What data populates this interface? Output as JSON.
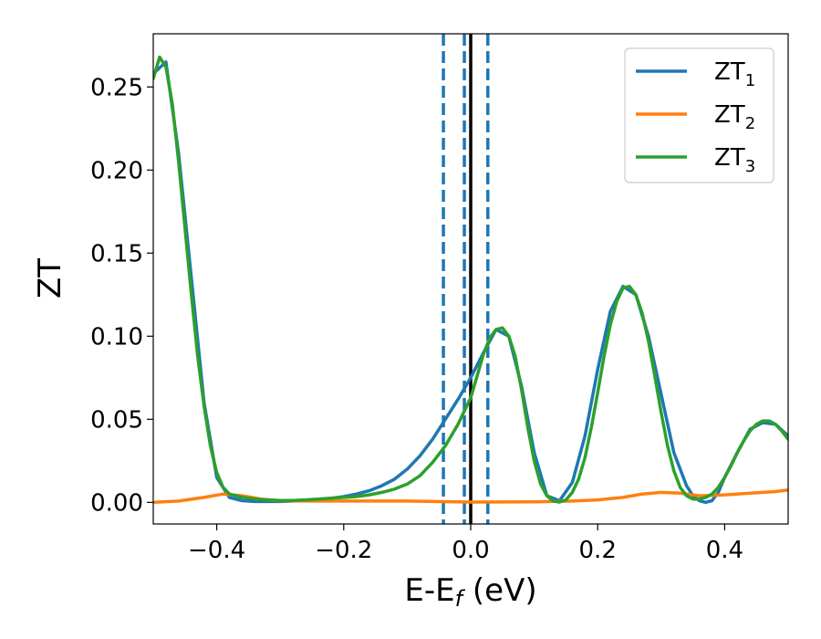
{
  "chart_data": {
    "type": "line",
    "xlabel_main": "E-E",
    "xlabel_sub": "f",
    "xlabel_unit": " (eV)",
    "ylabel": "ZT",
    "xlim": [
      -0.5,
      0.5
    ],
    "ylim": [
      -0.013,
      0.282
    ],
    "xticks": [
      -0.4,
      -0.2,
      0.0,
      0.2,
      0.4
    ],
    "xtick_labels": [
      "−0.4",
      "−0.2",
      "0.0",
      "0.2",
      "0.4"
    ],
    "yticks": [
      0.0,
      0.05,
      0.1,
      0.15,
      0.2,
      0.25
    ],
    "ytick_labels": [
      "0.00",
      "0.05",
      "0.10",
      "0.15",
      "0.20",
      "0.25"
    ],
    "grid": false,
    "legend_position": "upper-right",
    "vlines": [
      {
        "x": -0.043,
        "style": "dashed",
        "color": "#1f77b4"
      },
      {
        "x": -0.01,
        "style": "dashed",
        "color": "#1f77b4"
      },
      {
        "x": 0.027,
        "style": "dashed",
        "color": "#1f77b4"
      },
      {
        "x": 0.0,
        "style": "solid",
        "color": "#000000"
      }
    ],
    "series": [
      {
        "name": "ZT",
        "subscript": "1",
        "color": "#1f77b4",
        "x": [
          -0.5,
          -0.48,
          -0.46,
          -0.44,
          -0.42,
          -0.4,
          -0.38,
          -0.36,
          -0.34,
          -0.32,
          -0.3,
          -0.28,
          -0.26,
          -0.24,
          -0.22,
          -0.2,
          -0.18,
          -0.16,
          -0.14,
          -0.12,
          -0.1,
          -0.08,
          -0.06,
          -0.04,
          -0.02,
          0.0,
          0.02,
          0.04,
          0.06,
          0.08,
          0.1,
          0.12,
          0.14,
          0.16,
          0.18,
          0.2,
          0.22,
          0.24,
          0.26,
          0.28,
          0.3,
          0.32,
          0.34,
          0.35,
          0.36,
          0.37,
          0.38,
          0.39,
          0.4,
          0.42,
          0.44,
          0.46,
          0.48,
          0.5
        ],
        "y": [
          0.258,
          0.265,
          0.21,
          0.135,
          0.06,
          0.015,
          0.003,
          0.001,
          0.0005,
          0.0005,
          0.0005,
          0.0008,
          0.0012,
          0.0018,
          0.0025,
          0.0035,
          0.005,
          0.007,
          0.01,
          0.014,
          0.02,
          0.028,
          0.038,
          0.05,
          0.062,
          0.075,
          0.09,
          0.104,
          0.1,
          0.07,
          0.03,
          0.004,
          0.001,
          0.012,
          0.04,
          0.08,
          0.115,
          0.13,
          0.125,
          0.1,
          0.065,
          0.03,
          0.01,
          0.004,
          0.001,
          0.0,
          0.001,
          0.006,
          0.015,
          0.03,
          0.044,
          0.048,
          0.047,
          0.04
        ]
      },
      {
        "name": "ZT",
        "subscript": "2",
        "color": "#ff7f0e",
        "x": [
          -0.5,
          -0.46,
          -0.42,
          -0.39,
          -0.36,
          -0.33,
          -0.3,
          -0.26,
          -0.2,
          -0.1,
          0.0,
          0.1,
          0.16,
          0.2,
          0.24,
          0.27,
          0.3,
          0.33,
          0.36,
          0.4,
          0.44,
          0.48,
          0.5
        ],
        "y": [
          0.0,
          0.0008,
          0.003,
          0.005,
          0.004,
          0.002,
          0.001,
          0.0008,
          0.0008,
          0.0008,
          0.0002,
          0.0003,
          0.0008,
          0.0015,
          0.003,
          0.005,
          0.006,
          0.0055,
          0.004,
          0.0045,
          0.0055,
          0.0065,
          0.0075
        ]
      },
      {
        "name": "ZT",
        "subscript": "3",
        "color": "#2ca02c",
        "x": [
          -0.5,
          -0.49,
          -0.48,
          -0.47,
          -0.46,
          -0.45,
          -0.44,
          -0.43,
          -0.42,
          -0.41,
          -0.4,
          -0.39,
          -0.38,
          -0.36,
          -0.34,
          -0.32,
          -0.3,
          -0.28,
          -0.26,
          -0.24,
          -0.22,
          -0.2,
          -0.18,
          -0.16,
          -0.14,
          -0.12,
          -0.1,
          -0.08,
          -0.06,
          -0.04,
          -0.02,
          0.0,
          0.01,
          0.02,
          0.03,
          0.04,
          0.05,
          0.06,
          0.07,
          0.08,
          0.09,
          0.1,
          0.11,
          0.12,
          0.13,
          0.14,
          0.15,
          0.16,
          0.17,
          0.18,
          0.19,
          0.2,
          0.21,
          0.22,
          0.23,
          0.24,
          0.25,
          0.26,
          0.27,
          0.28,
          0.29,
          0.3,
          0.31,
          0.32,
          0.33,
          0.34,
          0.35,
          0.36,
          0.37,
          0.38,
          0.39,
          0.4,
          0.41,
          0.42,
          0.43,
          0.44,
          0.45,
          0.46,
          0.47,
          0.48,
          0.49,
          0.5
        ],
        "y": [
          0.255,
          0.268,
          0.262,
          0.24,
          0.205,
          0.165,
          0.125,
          0.088,
          0.058,
          0.034,
          0.018,
          0.009,
          0.005,
          0.003,
          0.002,
          0.0015,
          0.0012,
          0.0012,
          0.0015,
          0.002,
          0.0025,
          0.003,
          0.0035,
          0.0045,
          0.006,
          0.008,
          0.011,
          0.016,
          0.024,
          0.034,
          0.047,
          0.063,
          0.076,
          0.089,
          0.099,
          0.104,
          0.105,
          0.1,
          0.088,
          0.068,
          0.045,
          0.025,
          0.011,
          0.004,
          0.0008,
          0.0002,
          0.0015,
          0.006,
          0.014,
          0.027,
          0.045,
          0.066,
          0.088,
          0.107,
          0.121,
          0.129,
          0.13,
          0.125,
          0.114,
          0.097,
          0.076,
          0.054,
          0.034,
          0.019,
          0.009,
          0.004,
          0.002,
          0.002,
          0.003,
          0.005,
          0.009,
          0.015,
          0.022,
          0.03,
          0.037,
          0.043,
          0.047,
          0.049,
          0.049,
          0.047,
          0.043,
          0.038
        ]
      }
    ]
  }
}
